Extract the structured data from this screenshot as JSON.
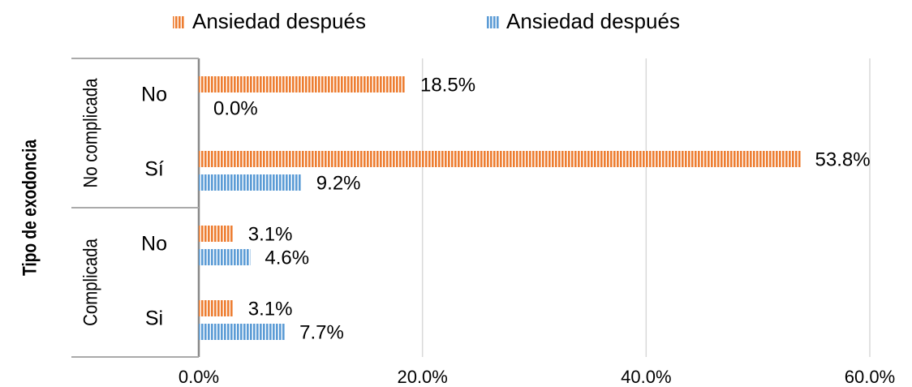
{
  "chart_data": {
    "type": "bar",
    "orientation": "horizontal",
    "y_axis_label": "Tipo de exodoncia",
    "category_groups": [
      "No complicada",
      "No complicada",
      "Complicada",
      "Complicada"
    ],
    "categories": [
      "No",
      "Sí",
      "No",
      "Si"
    ],
    "series": [
      {
        "name": "Ansiedad después",
        "color": "#ed7d31",
        "values": [
          18.5,
          53.8,
          3.1,
          3.1
        ],
        "value_labels": [
          "18.5%",
          "53.8%",
          "3.1%",
          "3.1%"
        ]
      },
      {
        "name": "Ansiedad después",
        "color": "#5b9bd5",
        "values": [
          0.0,
          9.2,
          4.6,
          7.7
        ],
        "value_labels": [
          "0.0%",
          "9.2%",
          "4.6%",
          "7.7%"
        ]
      }
    ],
    "xlim": [
      0,
      60
    ],
    "xticks": [
      {
        "value": 0,
        "label": "0.0%"
      },
      {
        "value": 20,
        "label": "20.0%"
      },
      {
        "value": 40,
        "label": "40.0%"
      },
      {
        "value": 60,
        "label": "60.0%"
      }
    ],
    "grid": true,
    "legend": "top"
  }
}
